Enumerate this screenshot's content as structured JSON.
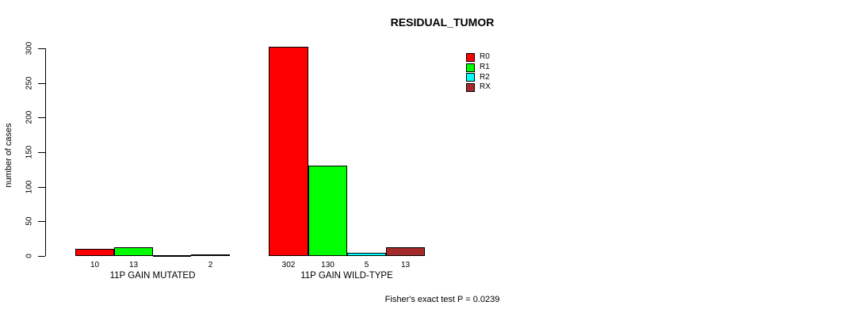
{
  "chart_data": {
    "type": "bar",
    "title": "RESIDUAL_TUMOR",
    "ylabel": "number of cases",
    "xlabel": "",
    "categories": [
      "11P GAIN MUTATED",
      "11P GAIN WILD-TYPE"
    ],
    "series": [
      {
        "name": "R0",
        "color": "#FF0000",
        "values": [
          10,
          302
        ]
      },
      {
        "name": "R1",
        "color": "#00FF00",
        "values": [
          13,
          130
        ]
      },
      {
        "name": "R2",
        "color": "#00FFFF",
        "values": [
          0,
          5
        ]
      },
      {
        "name": "RX",
        "color": "#A52A2A",
        "values": [
          2,
          13
        ]
      }
    ],
    "bar_value_labels": [
      [
        "10",
        "13",
        "",
        "2"
      ],
      [
        "302",
        "130",
        "5",
        "13"
      ]
    ],
    "ylim": [
      0,
      300
    ],
    "y_ticks": [
      "0",
      "50",
      "100",
      "150",
      "200",
      "250",
      "300"
    ],
    "grid": false,
    "legend_position": "top-right-inside",
    "annotation": "Fisher's exact test P = 0.0239"
  }
}
